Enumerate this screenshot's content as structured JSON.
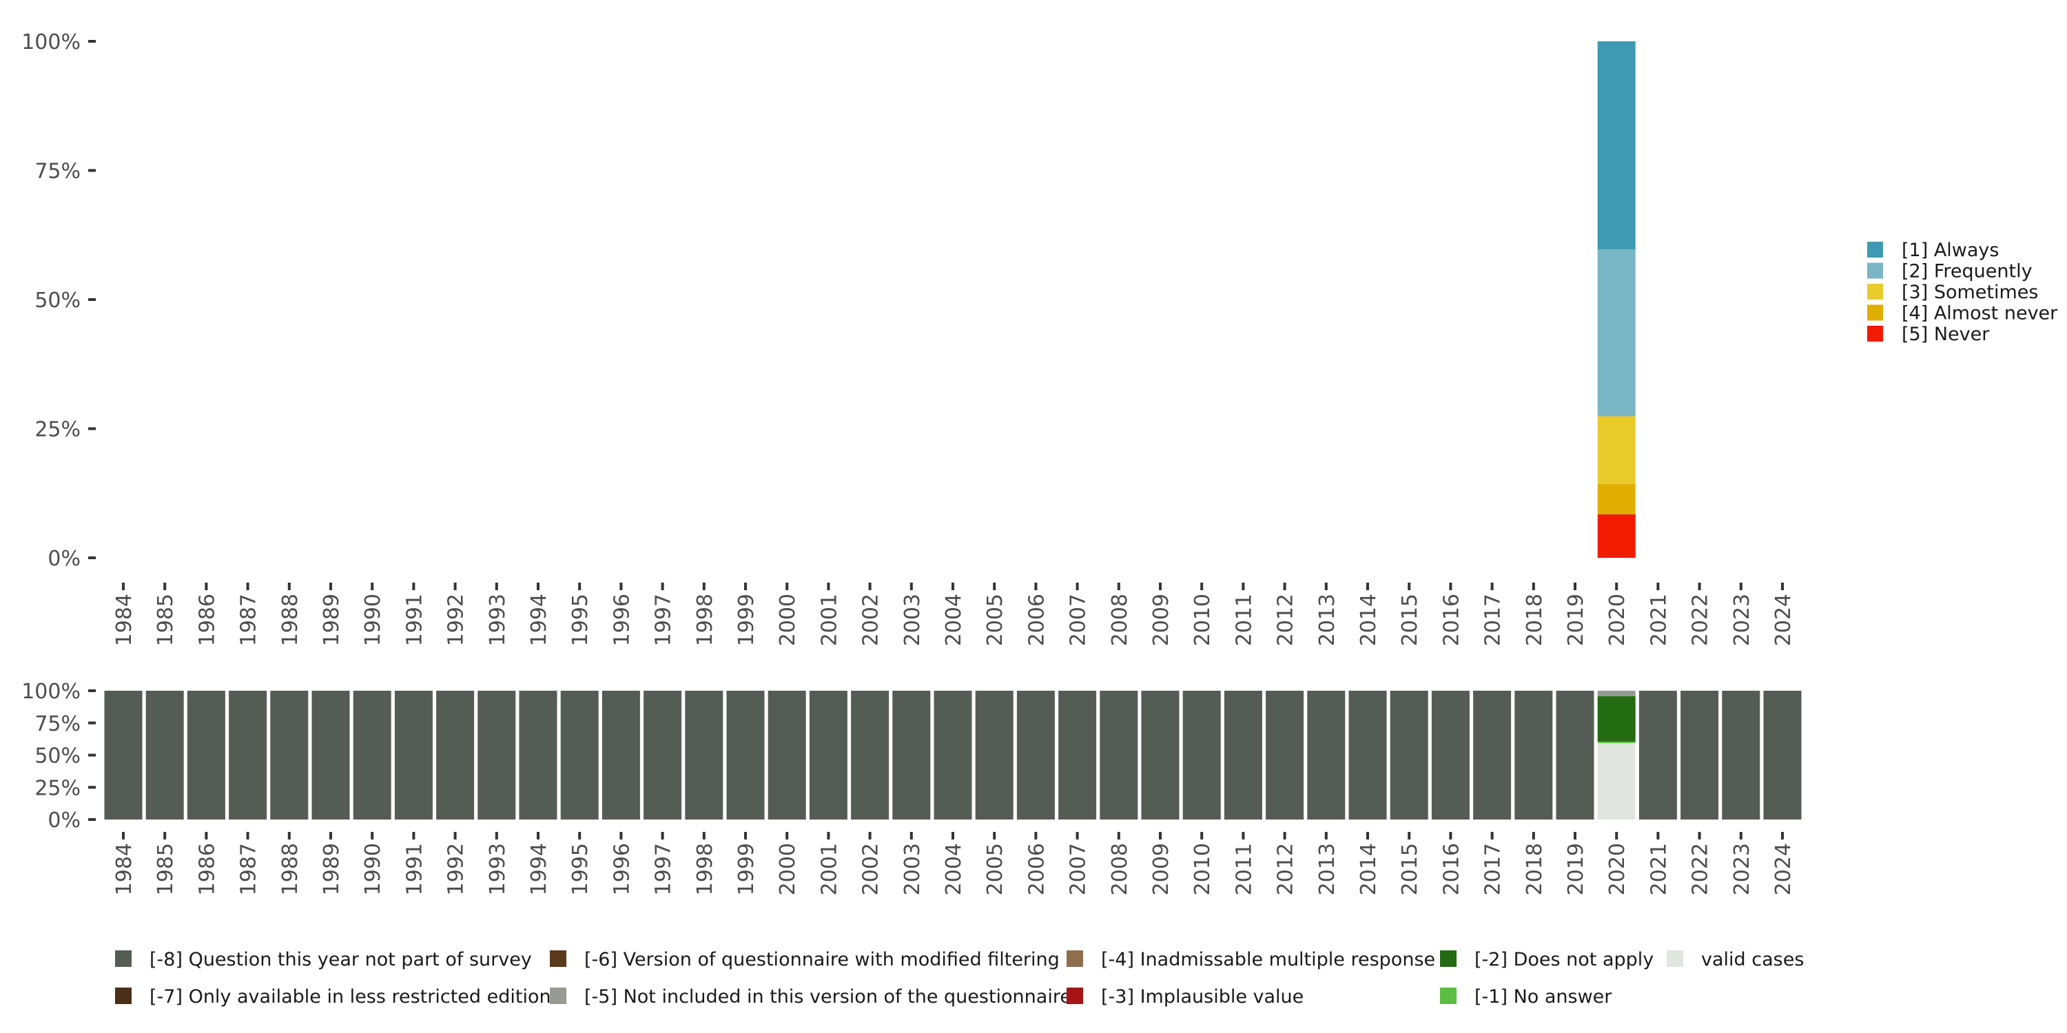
{
  "chart_data": [
    {
      "type": "bar",
      "stacked": true,
      "title": "",
      "xlabel": "",
      "ylabel": "",
      "ylim": [
        0,
        100
      ],
      "y_ticks": [
        "0%",
        "25%",
        "50%",
        "75%",
        "100%"
      ],
      "categories": [
        "1984",
        "1985",
        "1986",
        "1987",
        "1988",
        "1989",
        "1990",
        "1991",
        "1992",
        "1993",
        "1994",
        "1995",
        "1996",
        "1997",
        "1998",
        "1999",
        "2000",
        "2001",
        "2002",
        "2003",
        "2004",
        "2005",
        "2006",
        "2007",
        "2008",
        "2009",
        "2010",
        "2011",
        "2012",
        "2013",
        "2014",
        "2015",
        "2016",
        "2017",
        "2018",
        "2019",
        "2020",
        "2021",
        "2022",
        "2023",
        "2024"
      ],
      "legend_position": "right",
      "series": [
        {
          "name": "[5] Never",
          "color": "#f21a00",
          "values": {
            "2020": 8.4
          }
        },
        {
          "name": "[4] Almost never",
          "color": "#e0ae00",
          "values": {
            "2020": 5.9
          }
        },
        {
          "name": "[3] Sometimes",
          "color": "#eacb2c",
          "values": {
            "2020": 13.1
          }
        },
        {
          "name": "[2] Frequently",
          "color": "#7ab6c5",
          "values": {
            "2020": 32.3
          }
        },
        {
          "name": "[1] Always",
          "color": "#3d9ab2",
          "values": {
            "2020": 40.3
          }
        }
      ],
      "legend_order": [
        "[1] Always",
        "[2] Frequently",
        "[3] Sometimes",
        "[4] Almost never",
        "[5] Never"
      ]
    },
    {
      "type": "bar",
      "stacked": true,
      "title": "",
      "xlabel": "",
      "ylabel": "",
      "ylim": [
        0,
        100
      ],
      "y_ticks": [
        "0%",
        "25%",
        "50%",
        "75%",
        "100%"
      ],
      "categories": [
        "1984",
        "1985",
        "1986",
        "1987",
        "1988",
        "1989",
        "1990",
        "1991",
        "1992",
        "1993",
        "1994",
        "1995",
        "1996",
        "1997",
        "1998",
        "1999",
        "2000",
        "2001",
        "2002",
        "2003",
        "2004",
        "2005",
        "2006",
        "2007",
        "2008",
        "2009",
        "2010",
        "2011",
        "2012",
        "2013",
        "2014",
        "2015",
        "2016",
        "2017",
        "2018",
        "2019",
        "2020",
        "2021",
        "2022",
        "2023",
        "2024"
      ],
      "legend_position": "bottom",
      "default_series": "[-8] Question this year not part of survey",
      "series": [
        {
          "name": "valid cases",
          "color": "#e0e5e0",
          "values": {
            "2020": 59.4
          }
        },
        {
          "name": "[-1] No answer",
          "color": "#5abf40",
          "values": {
            "2020": 1.1
          }
        },
        {
          "name": "[-2] Does not apply",
          "color": "#226b10",
          "values": {
            "2020": 35.2
          }
        },
        {
          "name": "[-5] Not included in this version of the questionnaire",
          "color": "#969a93",
          "values": {
            "2020": 4.3
          }
        },
        {
          "name": "[-8] Question this year not part of survey",
          "color": "#555b55",
          "values": {
            "other_years": 100
          }
        }
      ],
      "legend_items": [
        {
          "name": "[-8] Question this year not part of survey",
          "color": "#555b55"
        },
        {
          "name": "[-6] Version of questionnaire with modified filtering",
          "color": "#5a3a1a"
        },
        {
          "name": "[-4] Inadmissable multiple response",
          "color": "#8f6e4e"
        },
        {
          "name": "[-2] Does not apply",
          "color": "#226b10"
        },
        {
          "name": "valid cases",
          "color": "#e0e5e0"
        },
        {
          "name": "[-7] Only available in less restricted edition",
          "color": "#4a3018"
        },
        {
          "name": "[-5] Not included in this version of the questionnaire",
          "color": "#969a93"
        },
        {
          "name": "[-3] Implausible value",
          "color": "#a51515"
        },
        {
          "name": "[-1] No answer",
          "color": "#5abf40"
        }
      ]
    }
  ]
}
